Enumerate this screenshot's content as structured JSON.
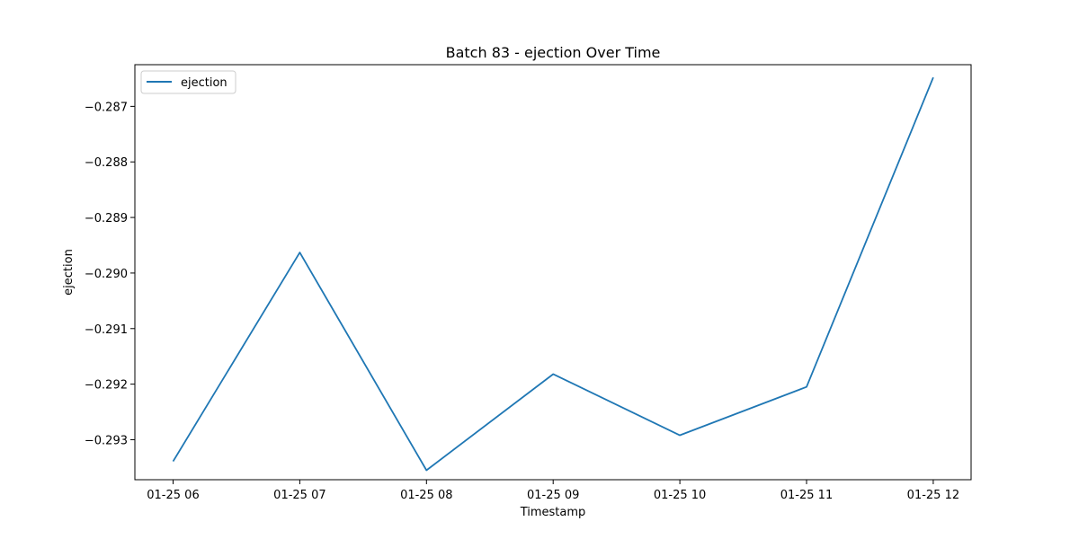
{
  "chart_data": {
    "type": "line",
    "title": "Batch 83 - ejection Over Time",
    "xlabel": "Timestamp",
    "ylabel": "ejection",
    "x": [
      "01-25 06",
      "01-25 07",
      "01-25 08",
      "01-25 09",
      "01-25 10",
      "01-25 11",
      "01-25 12"
    ],
    "x_tick_labels": [
      "01-25 06",
      "01-25 07",
      "01-25 08",
      "01-25 09",
      "01-25 10",
      "01-25 11",
      "01-25 12"
    ],
    "y_ticks": [
      -0.287,
      -0.288,
      -0.289,
      -0.29,
      -0.291,
      -0.292,
      -0.293
    ],
    "y_tick_labels": [
      "−0.287",
      "−0.288",
      "−0.289",
      "−0.290",
      "−0.291",
      "−0.292",
      "−0.293"
    ],
    "ylim": [
      -0.29372,
      -0.28625
    ],
    "series": [
      {
        "name": "ejection",
        "color": "#1f77b4",
        "values": [
          -0.29339,
          -0.28963,
          -0.29355,
          -0.29182,
          -0.29292,
          -0.29205,
          -0.28648
        ]
      }
    ],
    "legend": {
      "position": "top-left",
      "entries": [
        "ejection"
      ]
    },
    "grid": false
  }
}
